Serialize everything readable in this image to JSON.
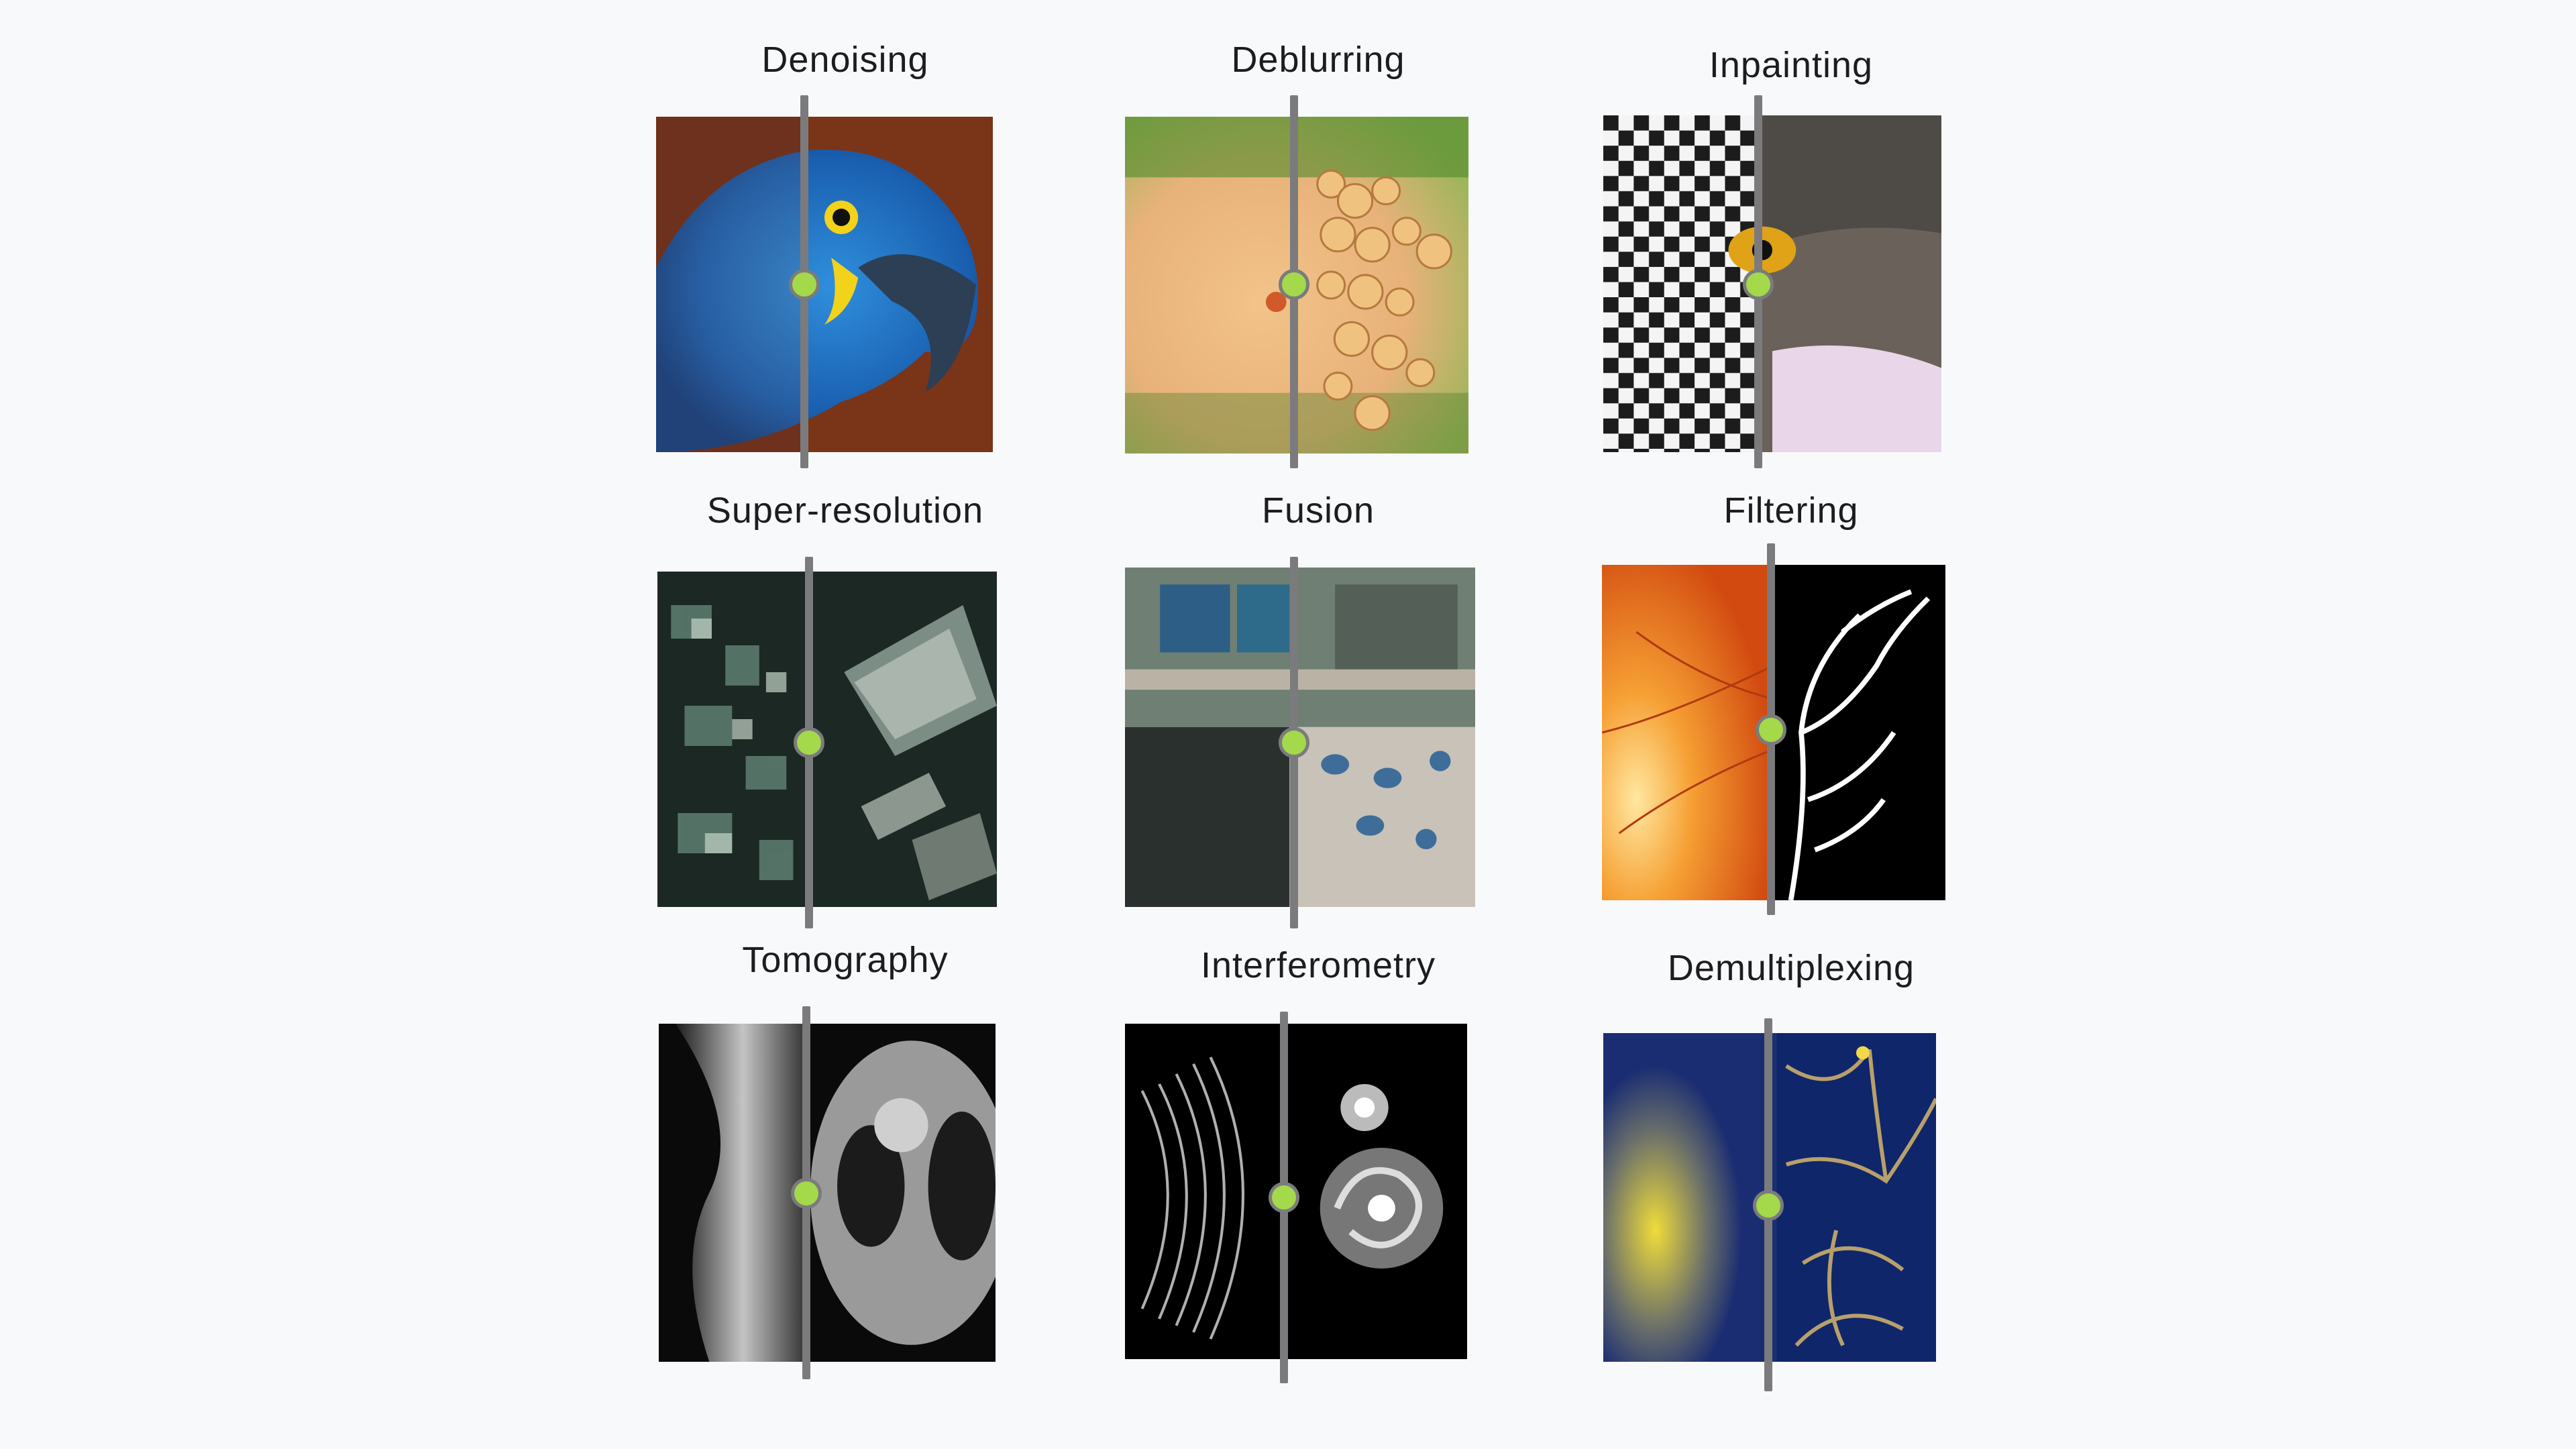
{
  "panels": [
    {
      "title": "Denoising",
      "left_caption": "",
      "right_caption": ""
    },
    {
      "title": "Deblurring"
    },
    {
      "title": "Inpainting"
    },
    {
      "title": "Super-resolution"
    },
    {
      "title": "Fusion"
    },
    {
      "title": "Filtering"
    },
    {
      "title": "Tomography"
    },
    {
      "title": "Interferometry"
    },
    {
      "title": "Demultiplexing"
    }
  ],
  "colors": {
    "background": "#f8f9fb",
    "divider": "#7b7b7d",
    "handle": "#a3d94a"
  },
  "icons": {
    "handle": "slider-handle-icon"
  },
  "slider_positions": [
    0.45,
    0.5,
    0.45,
    0.45,
    0.5,
    0.5,
    0.45,
    0.47,
    0.5
  ]
}
